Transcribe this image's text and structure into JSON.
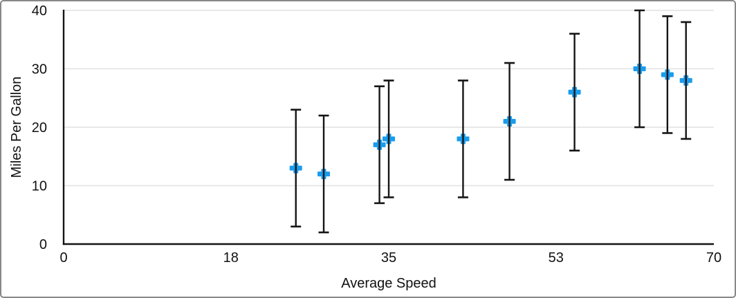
{
  "figure": {
    "background_color": "#ffffff",
    "border_color": "#878787"
  },
  "chart_data": {
    "type": "scatter",
    "title": "",
    "xlabel": "Average Speed",
    "ylabel": "Miles Per Gallon",
    "xlim": [
      0,
      70
    ],
    "ylim": [
      0,
      40
    ],
    "x_ticks": [
      0,
      18,
      35,
      53,
      70
    ],
    "y_ticks": [
      0,
      10,
      20,
      30,
      40
    ],
    "grid": "horizontal gridlines at each y tick",
    "legend": "none",
    "marker": "plus",
    "marker_color": "#1a9cec",
    "axis_color": "#141414",
    "gridline_color": "#e1e1e1",
    "text_color": "#111111",
    "error_bars": "vertical, +10 / -10 on every point, black with end caps",
    "points": [
      {
        "x": 25,
        "y": 13,
        "error_plus": 10,
        "error_minus": 10
      },
      {
        "x": 28,
        "y": 12,
        "error_plus": 10,
        "error_minus": 10
      },
      {
        "x": 34,
        "y": 17,
        "error_plus": 10,
        "error_minus": 10
      },
      {
        "x": 35,
        "y": 18,
        "error_plus": 10,
        "error_minus": 10
      },
      {
        "x": 43,
        "y": 18,
        "error_plus": 10,
        "error_minus": 10
      },
      {
        "x": 48,
        "y": 21,
        "error_plus": 10,
        "error_minus": 10
      },
      {
        "x": 55,
        "y": 26,
        "error_plus": 10,
        "error_minus": 10
      },
      {
        "x": 62,
        "y": 30,
        "error_plus": 10,
        "error_minus": 10
      },
      {
        "x": 65,
        "y": 29,
        "error_plus": 10,
        "error_minus": 10
      },
      {
        "x": 67,
        "y": 28,
        "error_plus": 10,
        "error_minus": 10
      }
    ]
  }
}
